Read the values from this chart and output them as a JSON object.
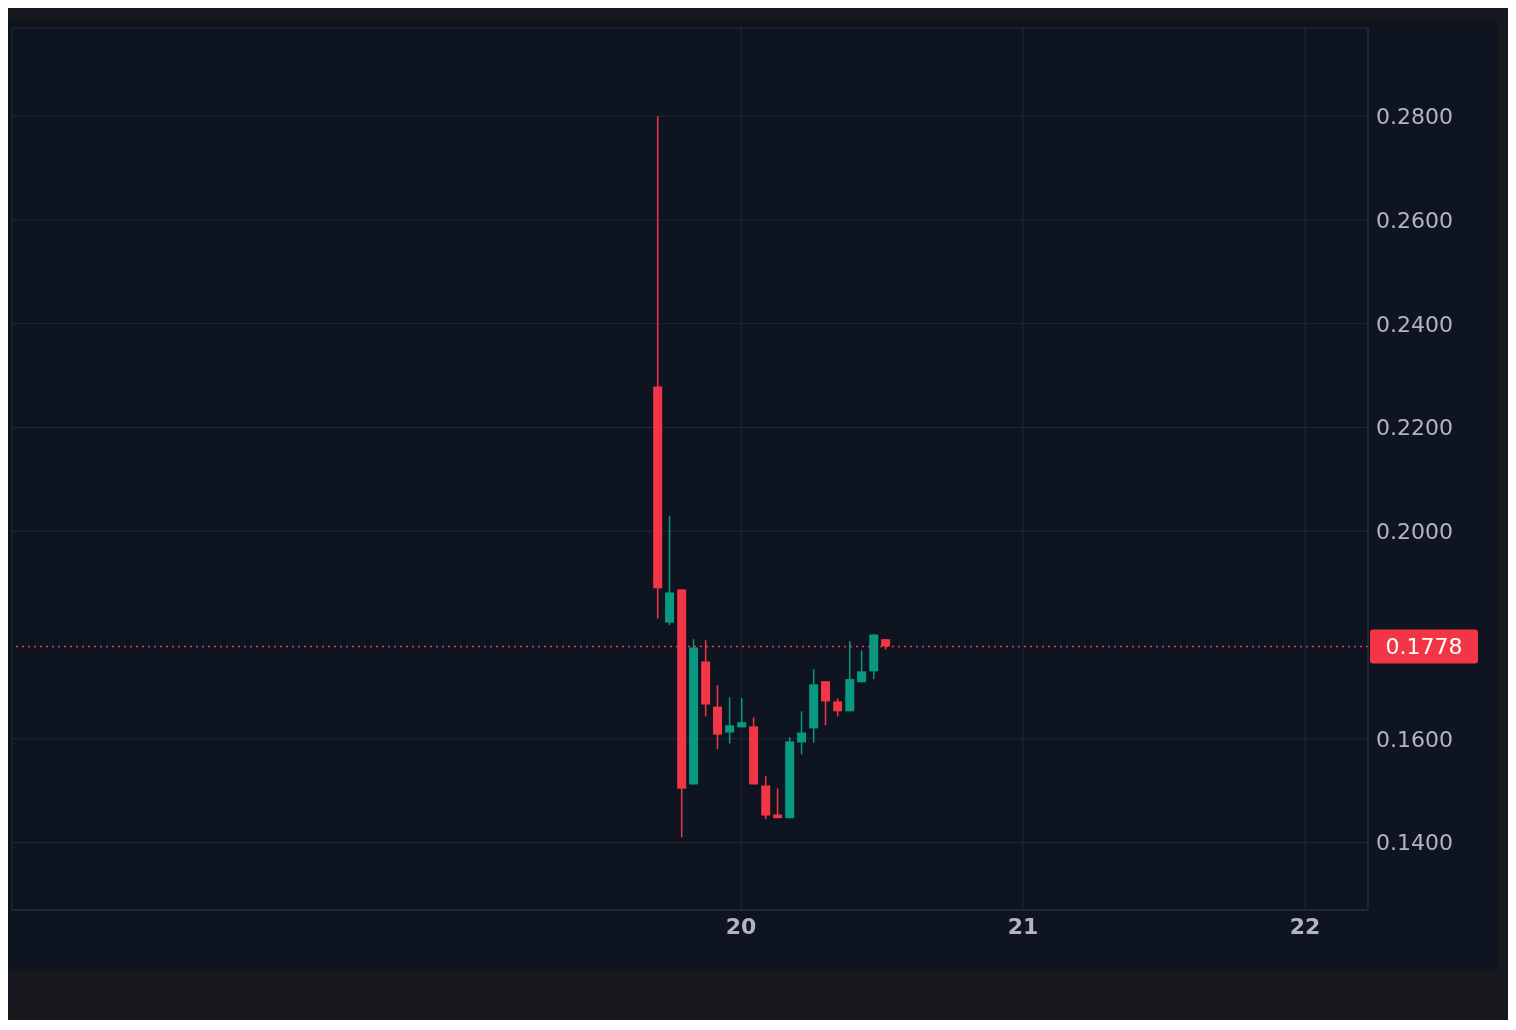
{
  "chart_data": {
    "type": "candlestick",
    "x": [
      19.706,
      19.748,
      19.791,
      19.833,
      19.876,
      19.918,
      19.961,
      20.004,
      20.046,
      20.089,
      20.131,
      20.174,
      20.216,
      20.259,
      20.301,
      20.344,
      20.387,
      20.429,
      20.472,
      20.514
    ],
    "ohlc": [
      [
        0.2279,
        0.28,
        0.1832,
        0.189
      ],
      [
        0.1824,
        0.2029,
        0.1819,
        0.1882
      ],
      [
        0.1888,
        0.1888,
        0.141,
        0.1504
      ],
      [
        0.1512,
        0.1792,
        0.1512,
        0.1776
      ],
      [
        0.1749,
        0.179,
        0.1643,
        0.1666
      ],
      [
        0.1662,
        0.1703,
        0.158,
        0.1608
      ],
      [
        0.1612,
        0.168,
        0.1591,
        0.1626
      ],
      [
        0.1622,
        0.1678,
        0.1622,
        0.1632
      ],
      [
        0.1624,
        0.1641,
        0.1512,
        0.1512
      ],
      [
        0.151,
        0.1528,
        0.1445,
        0.1452
      ],
      [
        0.1454,
        0.1504,
        0.1447,
        0.1447
      ],
      [
        0.1447,
        0.1603,
        0.1447,
        0.1595
      ],
      [
        0.1593,
        0.1653,
        0.157,
        0.1612
      ],
      [
        0.162,
        0.1734,
        0.1593,
        0.1705
      ],
      [
        0.1711,
        0.1711,
        0.1626,
        0.1672
      ],
      [
        0.1672,
        0.1678,
        0.1643,
        0.1653
      ],
      [
        0.1653,
        0.1788,
        0.1653,
        0.1715
      ],
      [
        0.1709,
        0.177,
        0.1709,
        0.173
      ],
      [
        0.173,
        0.1801,
        0.1715,
        0.1801
      ],
      [
        0.1792,
        0.1792,
        0.1772,
        0.1778
      ]
    ],
    "colors": [
      "#f23645",
      "#089981",
      "#f23645",
      "#089981",
      "#f23645",
      "#f23645",
      "#089981",
      "#089981",
      "#f23645",
      "#f23645",
      "#f23645",
      "#089981",
      "#089981",
      "#089981",
      "#f23645",
      "#f23645",
      "#089981",
      "#089981",
      "#089981",
      "#f23645"
    ],
    "xlim": [
      17.415,
      22.223
    ],
    "xticks": [
      20,
      21,
      22
    ],
    "ylim": [
      0.127,
      0.297
    ],
    "yticks": [
      {
        "value": 0.14,
        "label": "0.1400"
      },
      {
        "value": 0.16,
        "label": "0.1600"
      },
      {
        "value": 0.2,
        "label": "0.2000"
      },
      {
        "value": 0.22,
        "label": "0.2200"
      },
      {
        "value": 0.24,
        "label": "0.2400"
      },
      {
        "value": 0.26,
        "label": "0.2600"
      },
      {
        "value": 0.28,
        "label": "0.2800"
      }
    ],
    "grid": true,
    "ref_lines": [
      {
        "axis": "y",
        "value": 0.1778,
        "label": "0.1778",
        "color": "#f23645",
        "line_style": "dotted"
      }
    ]
  }
}
